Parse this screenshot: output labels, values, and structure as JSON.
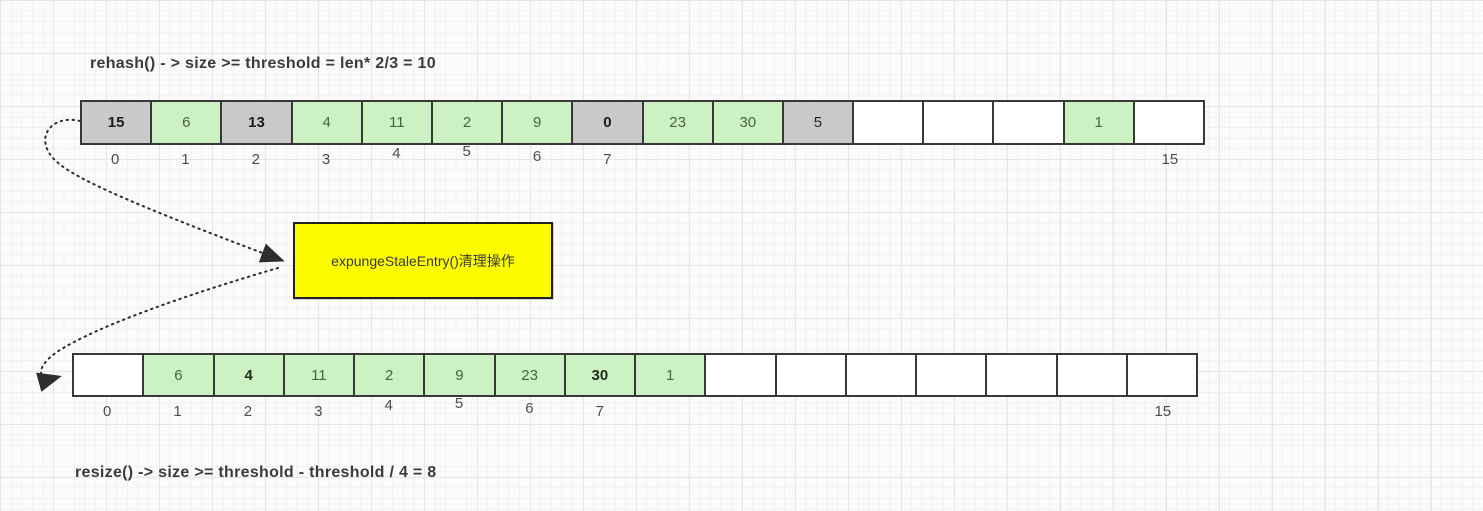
{
  "titles": {
    "rehash": "rehash() - > size >= threshold = len* 2/3 = 10",
    "resize": "resize() -> size >= threshold - threshold / 4 = 8"
  },
  "expunge_box": {
    "label": "expungeStaleEntry()清理操作"
  },
  "colors": {
    "slot_green": "#ccf2c3",
    "slot_gray": "#c9c9c9",
    "slot_empty": "#ffffff",
    "expunge_yellow": "#fdfd00",
    "line_dark": "#2e2e2e"
  },
  "top_array": {
    "cells": [
      {
        "value": "15",
        "style": "gray bold"
      },
      {
        "value": "6",
        "style": "green"
      },
      {
        "value": "13",
        "style": "gray bold"
      },
      {
        "value": "4",
        "style": "green"
      },
      {
        "value": "11",
        "style": "green"
      },
      {
        "value": "2",
        "style": "green"
      },
      {
        "value": "9",
        "style": "green"
      },
      {
        "value": "0",
        "style": "gray bold"
      },
      {
        "value": "23",
        "style": "green"
      },
      {
        "value": "30",
        "style": "green"
      },
      {
        "value": "5",
        "style": "gray"
      },
      {
        "value": "",
        "style": "white"
      },
      {
        "value": "",
        "style": "white"
      },
      {
        "value": "",
        "style": "white"
      },
      {
        "value": "1",
        "style": "green"
      },
      {
        "value": "",
        "style": "white"
      }
    ],
    "labels": [
      {
        "text": "0",
        "cell": 0
      },
      {
        "text": "1",
        "cell": 1
      },
      {
        "text": "2",
        "cell": 2
      },
      {
        "text": "3",
        "cell": 3
      },
      {
        "text": "4",
        "cell": 4
      },
      {
        "text": "5",
        "cell": 5
      },
      {
        "text": "6",
        "cell": 6
      },
      {
        "text": "7",
        "cell": 7
      },
      {
        "text": "15",
        "cell": 15
      }
    ]
  },
  "bottom_array": {
    "cells": [
      {
        "value": "",
        "style": "white"
      },
      {
        "value": "6",
        "style": "green"
      },
      {
        "value": "4",
        "style": "green bold"
      },
      {
        "value": "11",
        "style": "green"
      },
      {
        "value": "2",
        "style": "green"
      },
      {
        "value": "9",
        "style": "green"
      },
      {
        "value": "23",
        "style": "green"
      },
      {
        "value": "30",
        "style": "green bold"
      },
      {
        "value": "1",
        "style": "green"
      },
      {
        "value": "",
        "style": "white"
      },
      {
        "value": "",
        "style": "white"
      },
      {
        "value": "",
        "style": "white"
      },
      {
        "value": "",
        "style": "white"
      },
      {
        "value": "",
        "style": "white"
      },
      {
        "value": "",
        "style": "white"
      },
      {
        "value": "",
        "style": "white"
      }
    ],
    "labels": [
      {
        "text": "0",
        "cell": 0
      },
      {
        "text": "1",
        "cell": 1
      },
      {
        "text": "2",
        "cell": 2
      },
      {
        "text": "3",
        "cell": 3
      },
      {
        "text": "4",
        "cell": 4
      },
      {
        "text": "5",
        "cell": 5
      },
      {
        "text": "6",
        "cell": 6
      },
      {
        "text": "7",
        "cell": 7
      },
      {
        "text": "15",
        "cell": 15
      }
    ]
  }
}
